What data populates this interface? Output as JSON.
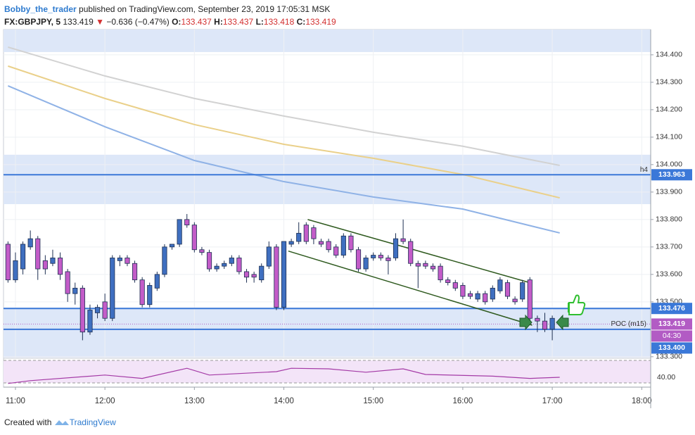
{
  "header": {
    "author": "Bobby_the_trader",
    "published": "published on TradingView.com, September 23, 2019 17:05:31 MSK",
    "symbol": "FX:GBPJPY, 5",
    "last": "133.419",
    "arrow": "▼",
    "change": "−0.636 (−0.47%)",
    "open_label": "O:",
    "open": "133.437",
    "high_label": "H:",
    "high": "133.437",
    "low_label": "L:",
    "low": "133.418",
    "close_label": "C:",
    "close": "133.419"
  },
  "footer": {
    "created": "Created with",
    "brand": "TradingView"
  },
  "chart_data": {
    "type": "candlestick",
    "bull_color": "#3f6fc0",
    "bear_color": "#c35cc8",
    "edge_color": "#1d2f52",
    "xlim": [
      -0.6,
      86.2
    ],
    "xticks": [
      {
        "value": 1,
        "label": "11:00"
      },
      {
        "value": 13,
        "label": "12:00"
      },
      {
        "value": 25,
        "label": "13:00"
      },
      {
        "value": 37,
        "label": "14:00"
      },
      {
        "value": 49,
        "label": "15:00"
      },
      {
        "value": 61,
        "label": "16:00"
      },
      {
        "value": 73,
        "label": "17:00"
      },
      {
        "value": 85,
        "label": "18:00"
      }
    ],
    "ylim": [
      133.297,
      134.492
    ],
    "yticks": [
      {
        "value": 133.3,
        "label": "133.300"
      },
      {
        "value": 133.5,
        "label": "133.500"
      },
      {
        "value": 133.6,
        "label": "133.600"
      },
      {
        "value": 133.7,
        "label": "133.700"
      },
      {
        "value": 133.8,
        "label": "133.800"
      },
      {
        "value": 133.9,
        "label": "133.900"
      },
      {
        "value": 134.0,
        "label": "134.000"
      },
      {
        "value": 134.1,
        "label": "134.100"
      },
      {
        "value": 134.2,
        "label": "134.200"
      },
      {
        "value": 134.3,
        "label": "134.300"
      },
      {
        "value": 134.4,
        "label": "134.400"
      }
    ],
    "grid": true,
    "candles": [
      [
        133.71,
        133.72,
        133.57,
        133.58
      ],
      [
        133.58,
        133.68,
        133.57,
        133.65
      ],
      [
        133.62,
        133.72,
        133.6,
        133.71
      ],
      [
        133.7,
        133.76,
        133.69,
        133.73
      ],
      [
        133.73,
        133.74,
        133.58,
        133.62
      ],
      [
        133.65,
        133.67,
        133.6,
        133.62
      ],
      [
        133.64,
        133.69,
        133.63,
        133.66
      ],
      [
        133.66,
        133.68,
        133.58,
        133.6
      ],
      [
        133.61,
        133.62,
        133.5,
        133.53
      ],
      [
        133.53,
        133.57,
        133.49,
        133.55
      ],
      [
        133.55,
        133.56,
        133.36,
        133.39
      ],
      [
        133.39,
        133.49,
        133.38,
        133.47
      ],
      [
        133.46,
        133.49,
        133.44,
        133.48
      ],
      [
        133.5,
        133.53,
        133.43,
        133.44
      ],
      [
        133.44,
        133.67,
        133.43,
        133.66
      ],
      [
        133.65,
        133.67,
        133.63,
        133.66
      ],
      [
        133.66,
        133.67,
        133.63,
        133.64
      ],
      [
        133.64,
        133.65,
        133.57,
        133.58
      ],
      [
        133.58,
        133.59,
        133.48,
        133.49
      ],
      [
        133.49,
        133.57,
        133.48,
        133.56
      ],
      [
        133.55,
        133.61,
        133.54,
        133.6
      ],
      [
        133.6,
        133.71,
        133.59,
        133.7
      ],
      [
        133.7,
        133.71,
        133.69,
        133.71
      ],
      [
        133.71,
        133.8,
        133.7,
        133.8
      ],
      [
        133.8,
        133.82,
        133.77,
        133.78
      ],
      [
        133.78,
        133.79,
        133.68,
        133.69
      ],
      [
        133.69,
        133.7,
        133.67,
        133.68
      ],
      [
        133.68,
        133.69,
        133.61,
        133.62
      ],
      [
        133.62,
        133.64,
        133.61,
        133.63
      ],
      [
        133.63,
        133.65,
        133.62,
        133.64
      ],
      [
        133.64,
        133.67,
        133.63,
        133.66
      ],
      [
        133.66,
        133.67,
        133.6,
        133.61
      ],
      [
        133.61,
        133.62,
        133.57,
        133.59
      ],
      [
        133.6,
        133.61,
        133.57,
        133.59
      ],
      [
        133.58,
        133.64,
        133.57,
        133.63
      ],
      [
        133.63,
        133.72,
        133.62,
        133.7
      ],
      [
        133.7,
        133.71,
        133.47,
        133.48
      ],
      [
        133.48,
        133.72,
        133.47,
        133.72
      ],
      [
        133.71,
        133.73,
        133.7,
        133.72
      ],
      [
        133.72,
        133.79,
        133.71,
        133.75
      ],
      [
        133.78,
        133.79,
        133.71,
        133.72
      ],
      [
        133.77,
        133.78,
        133.71,
        133.73
      ],
      [
        133.72,
        133.73,
        133.7,
        133.71
      ],
      [
        133.72,
        133.73,
        133.68,
        133.69
      ],
      [
        133.7,
        133.71,
        133.66,
        133.67
      ],
      [
        133.67,
        133.75,
        133.66,
        133.74
      ],
      [
        133.74,
        133.75,
        133.68,
        133.69
      ],
      [
        133.69,
        133.7,
        133.61,
        133.62
      ],
      [
        133.62,
        133.67,
        133.61,
        133.66
      ],
      [
        133.66,
        133.68,
        133.65,
        133.67
      ],
      [
        133.67,
        133.68,
        133.65,
        133.66
      ],
      [
        133.66,
        133.67,
        133.6,
        133.65
      ],
      [
        133.66,
        133.75,
        133.65,
        133.73
      ],
      [
        133.73,
        133.8,
        133.71,
        133.72
      ],
      [
        133.72,
        133.73,
        133.63,
        133.64
      ],
      [
        133.64,
        133.65,
        133.55,
        133.63
      ],
      [
        133.64,
        133.65,
        133.62,
        133.63
      ],
      [
        133.63,
        133.64,
        133.61,
        133.62
      ],
      [
        133.63,
        133.64,
        133.57,
        133.58
      ],
      [
        133.58,
        133.59,
        133.56,
        133.57
      ],
      [
        133.57,
        133.58,
        133.54,
        133.55
      ],
      [
        133.56,
        133.57,
        133.51,
        133.52
      ],
      [
        133.53,
        133.54,
        133.51,
        133.52
      ],
      [
        133.51,
        133.54,
        133.5,
        133.53
      ],
      [
        133.53,
        133.54,
        133.49,
        133.5
      ],
      [
        133.51,
        133.56,
        133.5,
        133.55
      ],
      [
        133.54,
        133.59,
        133.53,
        133.58
      ],
      [
        133.57,
        133.58,
        133.51,
        133.52
      ],
      [
        133.51,
        133.52,
        133.49,
        133.5
      ],
      [
        133.51,
        133.58,
        133.5,
        133.57
      ],
      [
        133.58,
        133.59,
        133.43,
        133.44
      ],
      [
        133.44,
        133.45,
        133.39,
        133.43
      ],
      [
        133.43,
        133.46,
        133.39,
        133.4
      ],
      [
        133.4,
        133.45,
        133.36,
        133.44
      ]
    ],
    "moving_averages": [
      {
        "color": "#d2d2d2",
        "x": [
          0,
          13,
          25,
          37,
          49,
          61,
          74
        ],
        "values": [
          134.428,
          134.323,
          134.241,
          134.177,
          134.118,
          134.067,
          133.997
        ]
      },
      {
        "color": "#ead08a",
        "x": [
          0,
          13,
          25,
          37,
          49,
          61,
          74
        ],
        "values": [
          134.359,
          134.241,
          134.146,
          134.074,
          134.023,
          133.964,
          133.879
        ]
      },
      {
        "color": "#8fb2e6",
        "x": [
          0,
          13,
          25,
          37,
          49,
          61,
          74
        ],
        "values": [
          134.287,
          134.138,
          134.015,
          133.938,
          133.882,
          133.838,
          133.751
        ]
      }
    ],
    "zones": [
      {
        "color": "#dde7f8",
        "from": 134.41,
        "to": 134.492
      },
      {
        "color": "#dde7f8",
        "from": 133.856,
        "to": 134.036
      },
      {
        "color": "#dde7f8",
        "from": 133.297,
        "to": 133.479
      }
    ],
    "trendlines": [
      {
        "color": "#2f5a1f",
        "x": [
          40.2,
          69.7
        ],
        "values": [
          133.8,
          133.572
        ]
      },
      {
        "color": "#2f5a1f",
        "x": [
          37.6,
          70.3
        ],
        "values": [
          133.685,
          133.415
        ]
      }
    ],
    "price_lines": [
      {
        "value": 133.963,
        "label": "133.963",
        "tag": "h4",
        "color": "#3b78d8"
      },
      {
        "value": 133.476,
        "label": "133.476",
        "color": "#3b78d8"
      },
      {
        "value": 133.4,
        "label": "133.400",
        "color": "#3b78d8"
      }
    ],
    "current_price": {
      "value": 133.419,
      "label": "133.419",
      "tag": "POC (m15)",
      "countdown": "04:30",
      "color": "#b25bc4"
    },
    "rsi": {
      "color": "#a43aa6",
      "band_color": "#f3e4f8",
      "x": [
        0,
        3,
        13,
        18,
        24,
        27,
        36,
        38,
        43,
        48,
        53,
        56,
        65,
        70,
        74
      ],
      "values": [
        29,
        34,
        44,
        38,
        56,
        44,
        50,
        56,
        55,
        49,
        55,
        45,
        42,
        38,
        40
      ],
      "ylim": [
        22.5,
        72.5
      ],
      "yticks": [
        {
          "value": 40,
          "label": "40.00"
        }
      ],
      "levels": [
        30,
        70
      ]
    }
  }
}
